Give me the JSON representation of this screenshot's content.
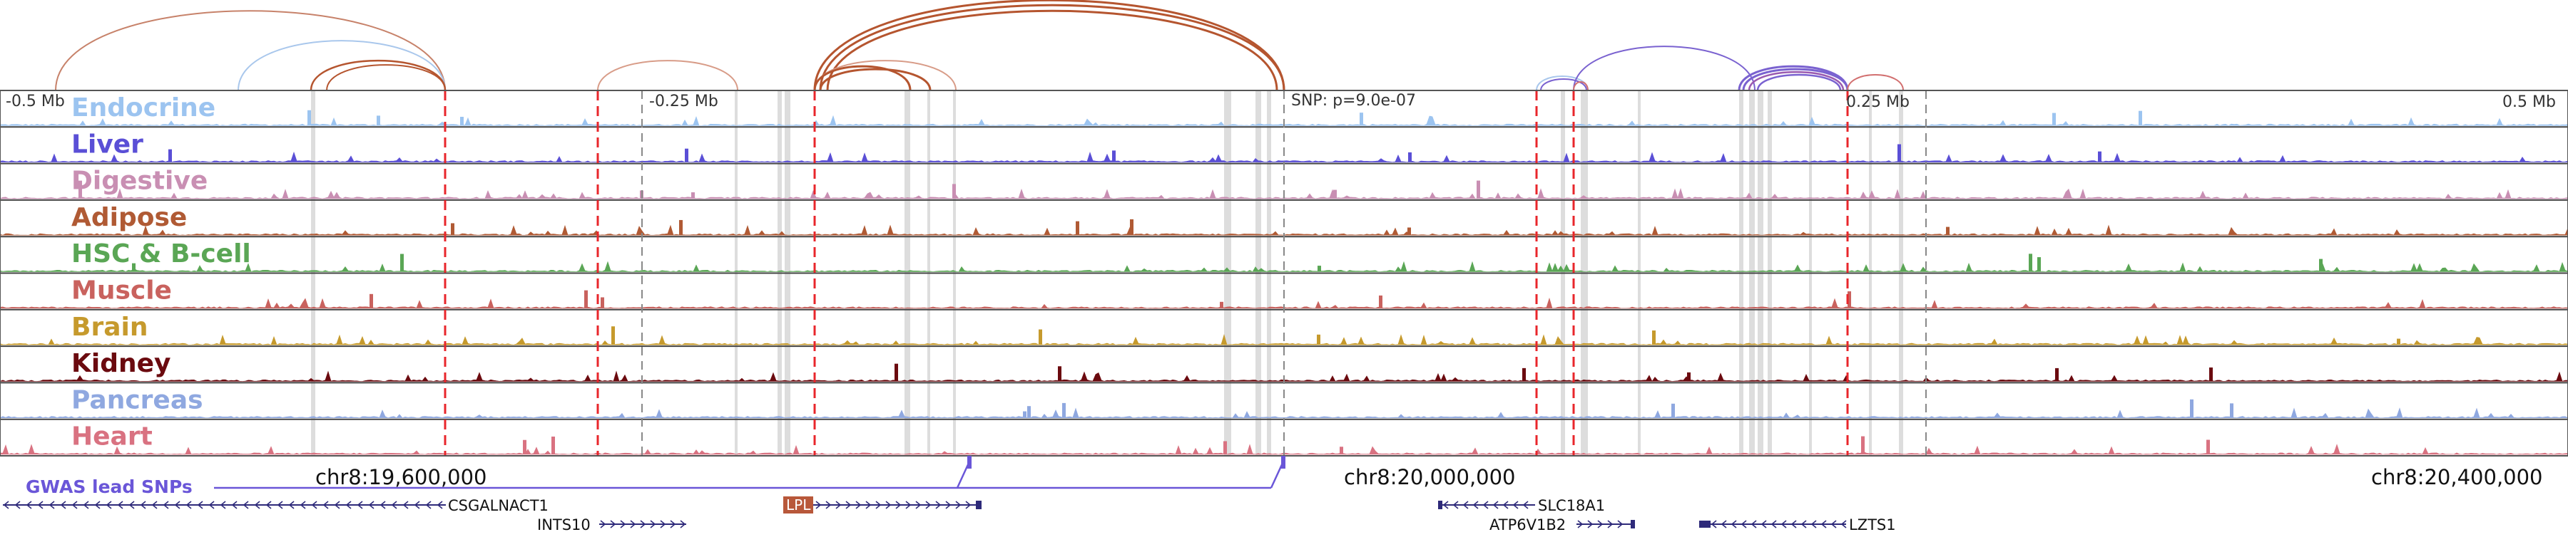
{
  "axis": {
    "left_label": "-0.5 Mb",
    "left_mid_label": "-0.25 Mb",
    "snp_label": "SNP: p=9.0e-07",
    "right_mid_label": "0.25 Mb",
    "right_label": "0.5 Mb"
  },
  "tracks": [
    {
      "name": "Endocrine",
      "color": "#9cc4f0"
    },
    {
      "name": "Liver",
      "color": "#5a4fd6"
    },
    {
      "name": "Digestive",
      "color": "#c98fb3"
    },
    {
      "name": "Adipose",
      "color": "#b05a34"
    },
    {
      "name": "HSC & B-cell",
      "color": "#5aa655"
    },
    {
      "name": "Muscle",
      "color": "#c9625e"
    },
    {
      "name": "Brain",
      "color": "#c69a2d"
    },
    {
      "name": "Kidney",
      "color": "#6b0a0f"
    },
    {
      "name": "Pancreas",
      "color": "#8fa8e0"
    },
    {
      "name": "Heart",
      "color": "#d97281"
    }
  ],
  "gwas": {
    "label": "GWAS lead SNPs",
    "color": "#6a56d8"
  },
  "coordinates": {
    "left": "chr8:19,600,000",
    "center": "chr8:20,000,000",
    "right": "chr8:20,400,000"
  },
  "genes": [
    {
      "name": "CSGALNACT1"
    },
    {
      "name": "INTS10"
    },
    {
      "name": "LPL",
      "highlight": true,
      "highlight_color": "#b8583a"
    },
    {
      "name": "SLC18A1"
    },
    {
      "name": "ATP6V1B2"
    },
    {
      "name": "LZTS1"
    }
  ],
  "colors": {
    "highlight_line": "#e8262b",
    "loop_brown": "#b5552f",
    "loop_purple": "#7a62d0",
    "loop_blue": "#a9c7ec",
    "loop_red": "#d27070",
    "gene_model": "#2e2a7a"
  }
}
